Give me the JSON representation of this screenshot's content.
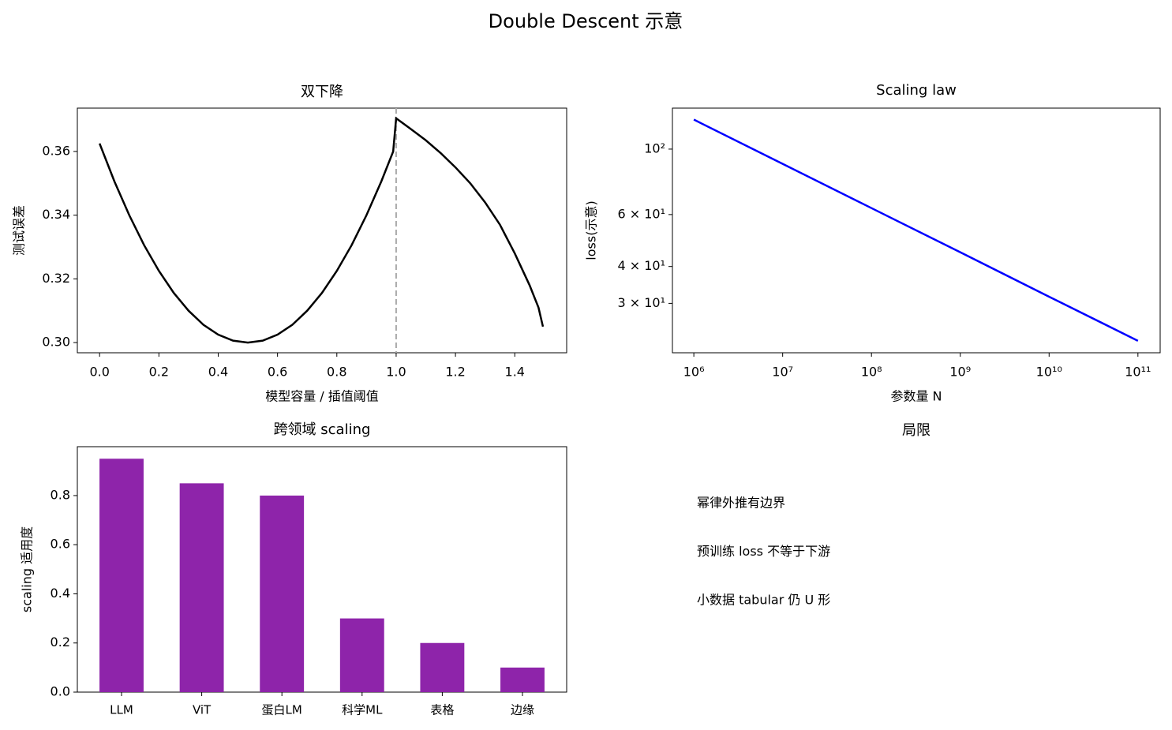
{
  "title": "Double Descent 示意",
  "chart_data": [
    {
      "type": "line",
      "title": "双下降",
      "xlabel": "模型容量 / 插值阈值",
      "ylabel": "测试误差",
      "x": [
        0,
        0.05,
        0.1,
        0.15,
        0.2,
        0.25,
        0.3,
        0.35,
        0.4,
        0.45,
        0.5,
        0.55,
        0.6,
        0.65,
        0.7,
        0.75,
        0.8,
        0.85,
        0.9,
        0.95,
        0.99,
        1.0,
        1.05,
        1.1,
        1.15,
        1.2,
        1.25,
        1.3,
        1.35,
        1.4,
        1.45,
        1.48,
        1.495
      ],
      "values": [
        0.3625,
        0.3506,
        0.34,
        0.3306,
        0.3225,
        0.3156,
        0.31,
        0.3056,
        0.3025,
        0.3006,
        0.3,
        0.3006,
        0.3025,
        0.3056,
        0.31,
        0.3156,
        0.3225,
        0.3306,
        0.34,
        0.3506,
        0.36,
        0.3704,
        0.367,
        0.3635,
        0.3595,
        0.355,
        0.35,
        0.344,
        0.337,
        0.328,
        0.318,
        0.311,
        0.305
      ],
      "color": "#000000",
      "vline": {
        "x": 1,
        "color": "#aaaaaa"
      },
      "xlim": [
        -0.075,
        1.575
      ],
      "xticks": [
        {
          "value": 0,
          "label": "0.0"
        },
        0.2,
        0.4,
        0.6,
        0.8,
        {
          "value": 1,
          "label": "1.0"
        },
        1.2,
        1.4
      ],
      "ylim": [
        0.2968,
        0.3736
      ],
      "yticks": [
        {
          "value": 0.3,
          "label": "0.30"
        },
        {
          "value": 0.32,
          "label": "0.32"
        },
        {
          "value": 0.34,
          "label": "0.34"
        },
        {
          "value": 0.36,
          "label": "0.36"
        }
      ]
    },
    {
      "type": "line",
      "title": "Scaling law",
      "xlabel": "参数量 N",
      "ylabel": "loss(示意)",
      "x": [
        1000000,
        10000000,
        100000000,
        1000000000,
        10000000000,
        100000000000
      ],
      "values": [
        125.9,
        89.1,
        63.1,
        44.7,
        31.6,
        22.4
      ],
      "color": "#0000ff",
      "xscale": "log",
      "yscale": "log",
      "xlim": [
        574000,
        178000000000
      ],
      "xticks": [
        {
          "value": 1000000,
          "label": "10⁶"
        },
        {
          "value": 10000000,
          "label": "10⁷"
        },
        {
          "value": 100000000,
          "label": "10⁸"
        },
        {
          "value": 1000000000,
          "label": "10⁹"
        },
        {
          "value": 10000000000,
          "label": "10¹⁰"
        },
        {
          "value": 100000000000,
          "label": "10¹¹"
        }
      ],
      "ylim": [
        20.4,
        137.7
      ],
      "yticks": [
        {
          "value": 30,
          "label": "3 × 10¹"
        },
        {
          "value": 40,
          "label": "4 × 10¹"
        },
        {
          "value": 60,
          "label": "6 × 10¹"
        },
        {
          "value": 100,
          "label": "10²"
        }
      ]
    },
    {
      "type": "bar",
      "title": "跨领域 scaling",
      "ylabel": "scaling 适用度",
      "categories": [
        "LLM",
        "ViT",
        "蛋白LM",
        "科学ML",
        "表格",
        "边缘"
      ],
      "values": [
        0.95,
        0.85,
        0.8,
        0.3,
        0.2,
        0.1
      ],
      "color": "#8e24aa",
      "ylim": [
        0,
        0.999
      ],
      "yticks": [
        {
          "value": 0,
          "label": "0.0"
        },
        0.2,
        0.4,
        0.6,
        0.8
      ]
    },
    {
      "type": "text",
      "title": "局限",
      "lines": [
        "幂律外推有边界",
        "预训练 loss 不等于下游",
        "小数据 tabular 仍 U 形"
      ]
    }
  ]
}
